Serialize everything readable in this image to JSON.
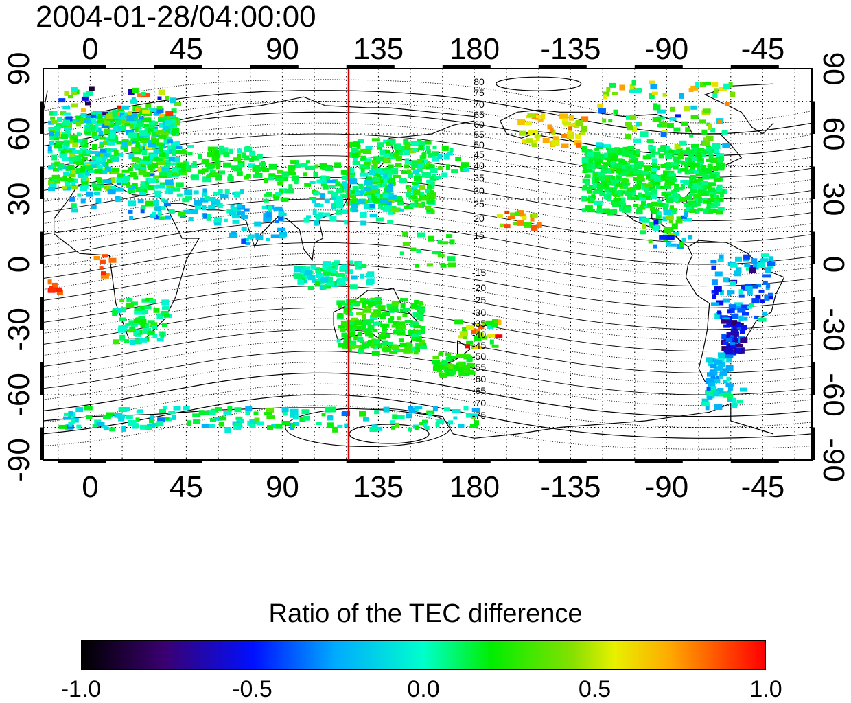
{
  "title": "2004-01-28/04:00:00",
  "x_ticks": [
    "0",
    "45",
    "90",
    "135",
    "180",
    "-135",
    "-90",
    "-45"
  ],
  "y_ticks": [
    "90",
    "60",
    "30",
    "0",
    "-30",
    "-60",
    "-90"
  ],
  "contour_labels_north": [
    "80",
    "75",
    "70",
    "65",
    "60",
    "55",
    "50",
    "45",
    "40",
    "35",
    "30",
    "25",
    "20",
    "15"
  ],
  "contour_labels_south": [
    "-15",
    "-20",
    "-25",
    "-30",
    "-35",
    "-40",
    "-45",
    "-50",
    "-55",
    "-60",
    "-65",
    "-70",
    "-75"
  ],
  "meridian_line": {
    "longitude": 120,
    "color": "#d40000"
  },
  "colorbar": {
    "label": "Ratio of the TEC difference",
    "ticks": [
      "-1.0",
      "-0.5",
      "0.0",
      "0.5",
      "1.0"
    ],
    "range": [
      -1.0,
      1.0
    ]
  },
  "colors": {
    "land_outline": "#000000",
    "grid": "#000000"
  }
}
